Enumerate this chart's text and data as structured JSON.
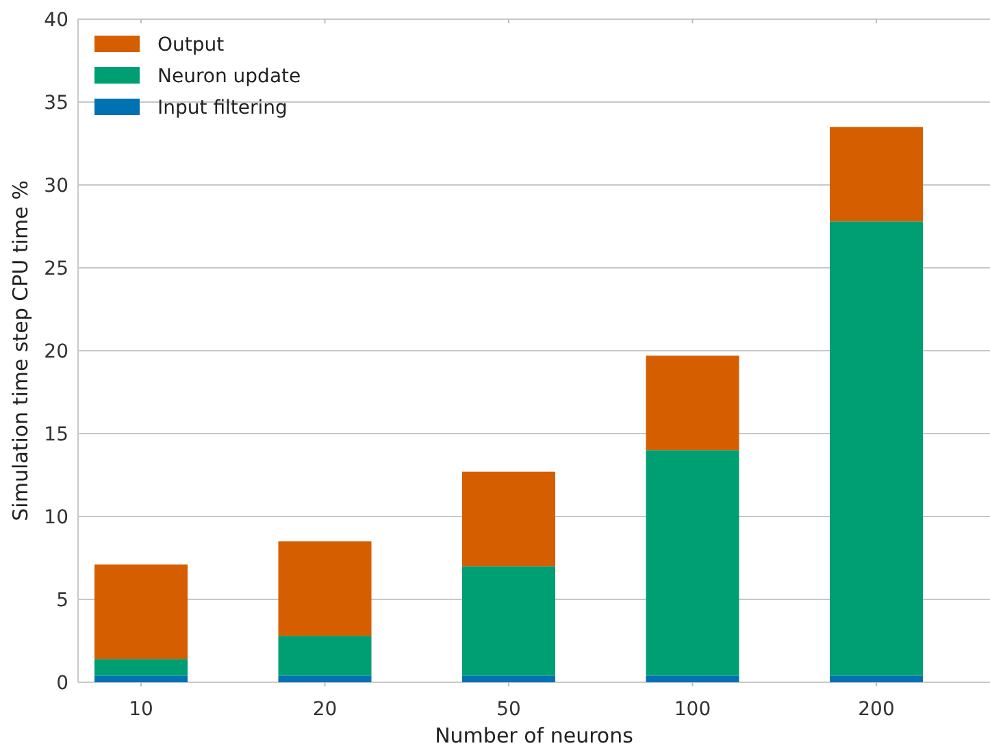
{
  "chart_data": {
    "type": "bar",
    "stacked": true,
    "xlabel": "Number of neurons",
    "ylabel": "Simulation time step CPU time %",
    "categories": [
      "10",
      "20",
      "50",
      "100",
      "200"
    ],
    "series": [
      {
        "name": "Input filtering",
        "color": "#0072b2",
        "values": [
          0.4,
          0.4,
          0.4,
          0.4,
          0.4
        ]
      },
      {
        "name": "Neuron update",
        "color": "#009e73",
        "values": [
          1.0,
          2.4,
          6.6,
          13.6,
          27.4
        ]
      },
      {
        "name": "Output",
        "color": "#d55e00",
        "values": [
          5.7,
          5.7,
          5.7,
          5.7,
          5.7
        ]
      }
    ],
    "ylim": [
      0,
      40
    ],
    "yticks": [
      0,
      5,
      10,
      15,
      20,
      25,
      30,
      35,
      40
    ],
    "grid": "y",
    "legend": "top left"
  }
}
